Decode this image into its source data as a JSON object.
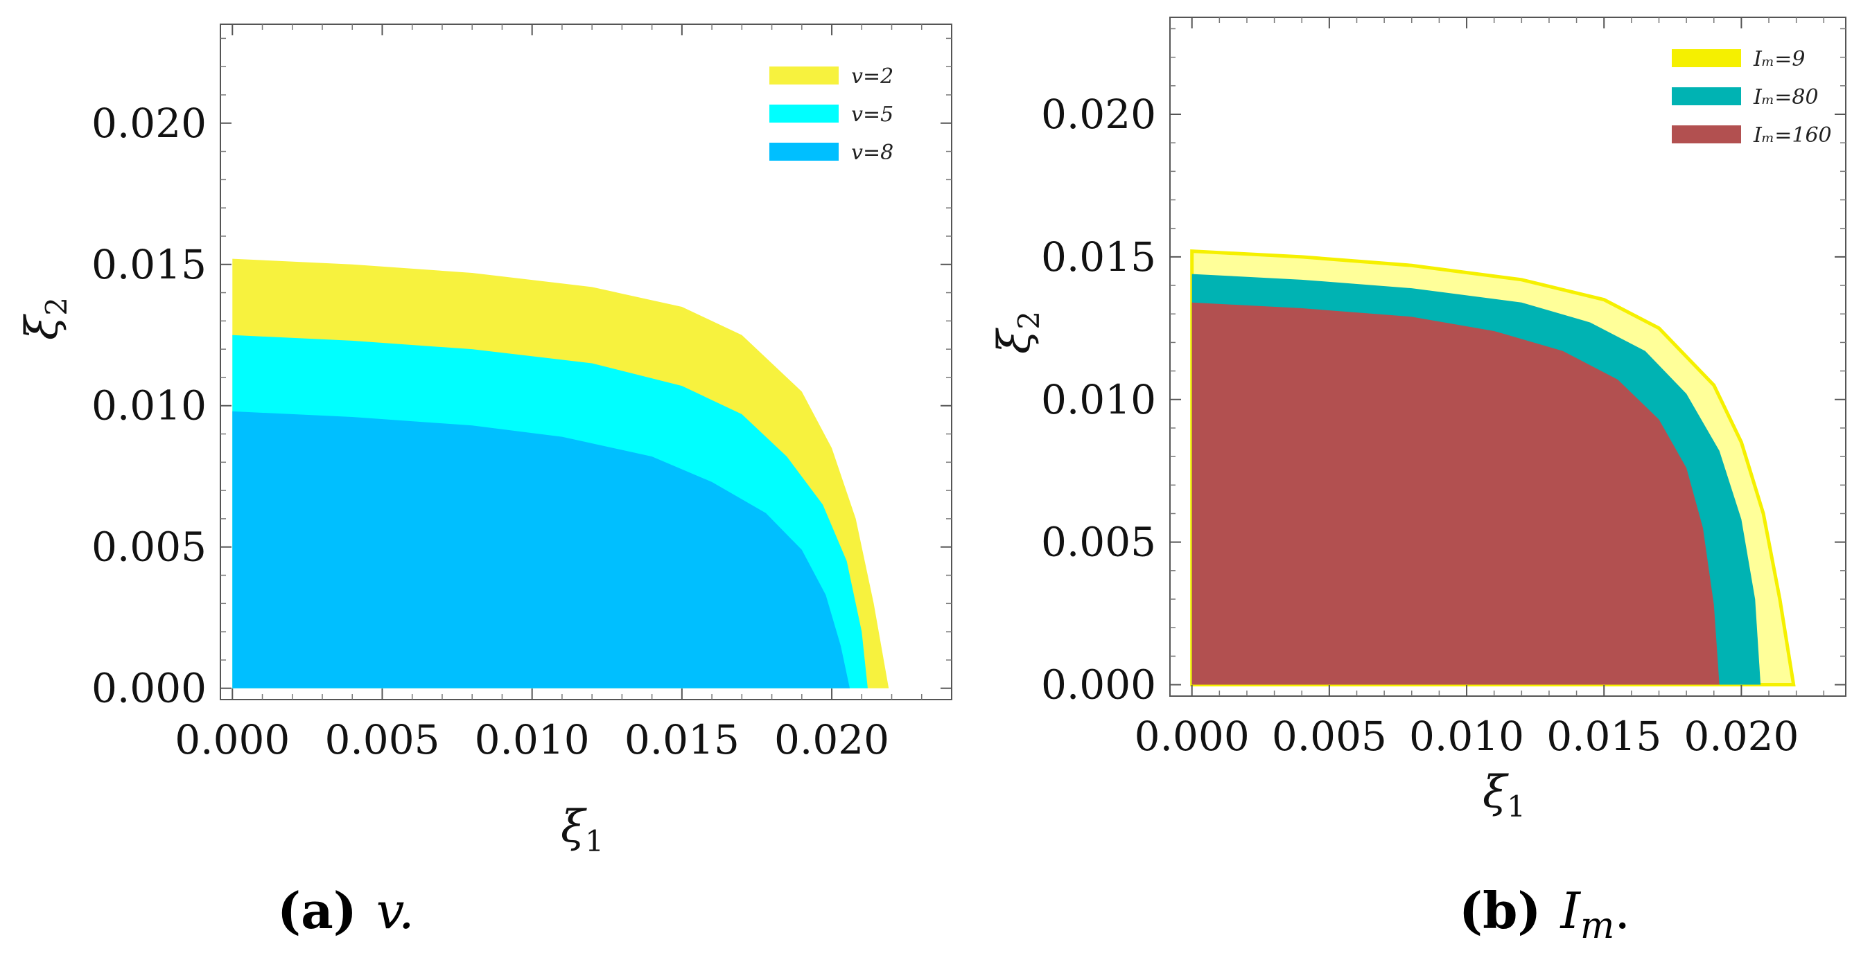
{
  "chart_data": [
    {
      "type": "area",
      "caption": {
        "letter": "(a)",
        "math": "v."
      },
      "xlabel": "ξ1",
      "ylabel": "ξ2",
      "xlim": [
        -0.0004,
        0.024
      ],
      "ylim": [
        -0.0004,
        0.0235
      ],
      "xticks": [
        "0.000",
        "0.005",
        "0.010",
        "0.015",
        "0.020"
      ],
      "yticks": [
        "0.000",
        "0.005",
        "0.010",
        "0.015",
        "0.020"
      ],
      "legend_position": "top-right",
      "series": [
        {
          "name": "v=2",
          "color": "#f7f23e",
          "y0": 0.0152,
          "x0": 0.0219,
          "x": [
            0,
            0.004,
            0.008,
            0.012,
            0.015,
            0.017,
            0.019,
            0.02,
            0.0208,
            0.0214,
            0.0219
          ],
          "y": [
            0.0152,
            0.015,
            0.0147,
            0.0142,
            0.0135,
            0.0125,
            0.0105,
            0.0085,
            0.006,
            0.003,
            0
          ]
        },
        {
          "name": "v=5",
          "color": "#00ffff",
          "y0": 0.0125,
          "x0": 0.0212,
          "x": [
            0,
            0.004,
            0.008,
            0.012,
            0.015,
            0.017,
            0.0185,
            0.0197,
            0.0205,
            0.021,
            0.0212
          ],
          "y": [
            0.0125,
            0.0123,
            0.012,
            0.0115,
            0.0107,
            0.0097,
            0.0082,
            0.0065,
            0.0045,
            0.002,
            0
          ]
        },
        {
          "name": "v=8",
          "color": "#00bfff",
          "y0": 0.0098,
          "x0": 0.0206,
          "x": [
            0,
            0.004,
            0.008,
            0.011,
            0.014,
            0.016,
            0.0178,
            0.019,
            0.0198,
            0.0203,
            0.0206
          ],
          "y": [
            0.0098,
            0.0096,
            0.0093,
            0.0089,
            0.0082,
            0.0073,
            0.0062,
            0.0049,
            0.0033,
            0.0015,
            0
          ]
        }
      ]
    },
    {
      "type": "area",
      "caption": {
        "letter": "(b)",
        "math": "I",
        "math_sub": "m",
        "math_suffix": "."
      },
      "xlabel": "ξ1",
      "ylabel": "ξ2",
      "xlim": [
        -0.0008,
        0.0238
      ],
      "ylim": [
        -0.0004,
        0.0234
      ],
      "xticks": [
        "0.000",
        "0.005",
        "0.010",
        "0.015",
        "0.020"
      ],
      "yticks": [
        "0.000",
        "0.005",
        "0.010",
        "0.015",
        "0.020"
      ],
      "legend_position": "top-right",
      "series": [
        {
          "name": "Iₘ=9",
          "color": "#ffff99",
          "edge": "#f5f000",
          "y0": 0.0152,
          "x0": 0.0219,
          "x": [
            0,
            0.004,
            0.008,
            0.012,
            0.015,
            0.017,
            0.019,
            0.02,
            0.0208,
            0.0214,
            0.0219
          ],
          "y": [
            0.0152,
            0.015,
            0.0147,
            0.0142,
            0.0135,
            0.0125,
            0.0105,
            0.0085,
            0.006,
            0.003,
            0
          ]
        },
        {
          "name": "Iₘ=80",
          "color": "#00b3b3",
          "y0": 0.0144,
          "x0": 0.0207,
          "x": [
            0,
            0.004,
            0.008,
            0.012,
            0.0145,
            0.0165,
            0.018,
            0.0192,
            0.02,
            0.0205,
            0.0207
          ],
          "y": [
            0.0144,
            0.0142,
            0.0139,
            0.0134,
            0.0127,
            0.0117,
            0.0102,
            0.0082,
            0.0058,
            0.003,
            0
          ]
        },
        {
          "name": "Iₘ=160",
          "color": "#b25050",
          "y0": 0.0134,
          "x0": 0.0192,
          "x": [
            0,
            0.004,
            0.008,
            0.011,
            0.0135,
            0.0155,
            0.017,
            0.018,
            0.0186,
            0.019,
            0.0192
          ],
          "y": [
            0.0134,
            0.0132,
            0.0129,
            0.0124,
            0.0117,
            0.0107,
            0.0093,
            0.0076,
            0.0055,
            0.0028,
            0
          ]
        }
      ]
    }
  ]
}
